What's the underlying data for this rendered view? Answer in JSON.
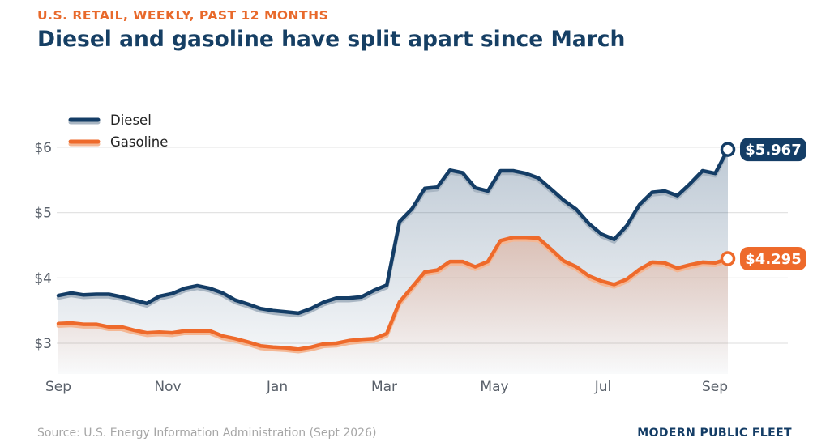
{
  "colors": {
    "kicker": "#e8692b",
    "title": "#163f64",
    "brand": "#143d66"
  },
  "chart_data": {
    "type": "line",
    "kicker": "U.S. RETAIL, WEEKLY, PAST 12 MONTHS",
    "title": "Diesel and gasoline have split apart since March",
    "x_ticks": [
      "Sep",
      "Nov",
      "Jan",
      "Mar",
      "May",
      "Jul",
      "Sep"
    ],
    "y_ticks": [
      {
        "value": 3,
        "label": "$3"
      },
      {
        "value": 4,
        "label": "$4"
      },
      {
        "value": 5,
        "label": "$5"
      },
      {
        "value": 6,
        "label": "$6"
      }
    ],
    "ylim": [
      2.55,
      6.5
    ],
    "grid": true,
    "legend": "top-left",
    "series": [
      {
        "name": "Diesel",
        "color": "#143d66",
        "end_label": "$5.967",
        "values": [
          3.73,
          3.77,
          3.74,
          3.75,
          3.75,
          3.71,
          3.66,
          3.61,
          3.72,
          3.76,
          3.84,
          3.88,
          3.84,
          3.77,
          3.66,
          3.6,
          3.53,
          3.5,
          3.48,
          3.46,
          3.53,
          3.63,
          3.69,
          3.69,
          3.71,
          3.81,
          3.89,
          4.86,
          5.06,
          5.37,
          5.39,
          5.65,
          5.61,
          5.38,
          5.33,
          5.64,
          5.64,
          5.6,
          5.53,
          5.36,
          5.19,
          5.05,
          4.83,
          4.67,
          4.59,
          4.8,
          5.12,
          5.31,
          5.33,
          5.26,
          5.44,
          5.64,
          5.6,
          5.967
        ]
      },
      {
        "name": "Gasoline",
        "color": "#ee6a2b",
        "end_label": "$4.295",
        "values": [
          3.3,
          3.31,
          3.29,
          3.29,
          3.25,
          3.25,
          3.2,
          3.16,
          3.17,
          3.16,
          3.19,
          3.19,
          3.19,
          3.11,
          3.07,
          3.02,
          2.96,
          2.94,
          2.93,
          2.91,
          2.94,
          2.99,
          3.0,
          3.04,
          3.06,
          3.07,
          3.15,
          3.63,
          3.86,
          4.09,
          4.12,
          4.25,
          4.25,
          4.17,
          4.25,
          4.57,
          4.62,
          4.62,
          4.61,
          4.44,
          4.26,
          4.17,
          4.03,
          3.95,
          3.9,
          3.98,
          4.13,
          4.24,
          4.23,
          4.15,
          4.2,
          4.24,
          4.23,
          4.295
        ]
      }
    ]
  },
  "footer": {
    "source": "Source: U.S. Energy Information Administration (Sept 2026)",
    "brand": "MODERN PUBLIC FLEET"
  }
}
